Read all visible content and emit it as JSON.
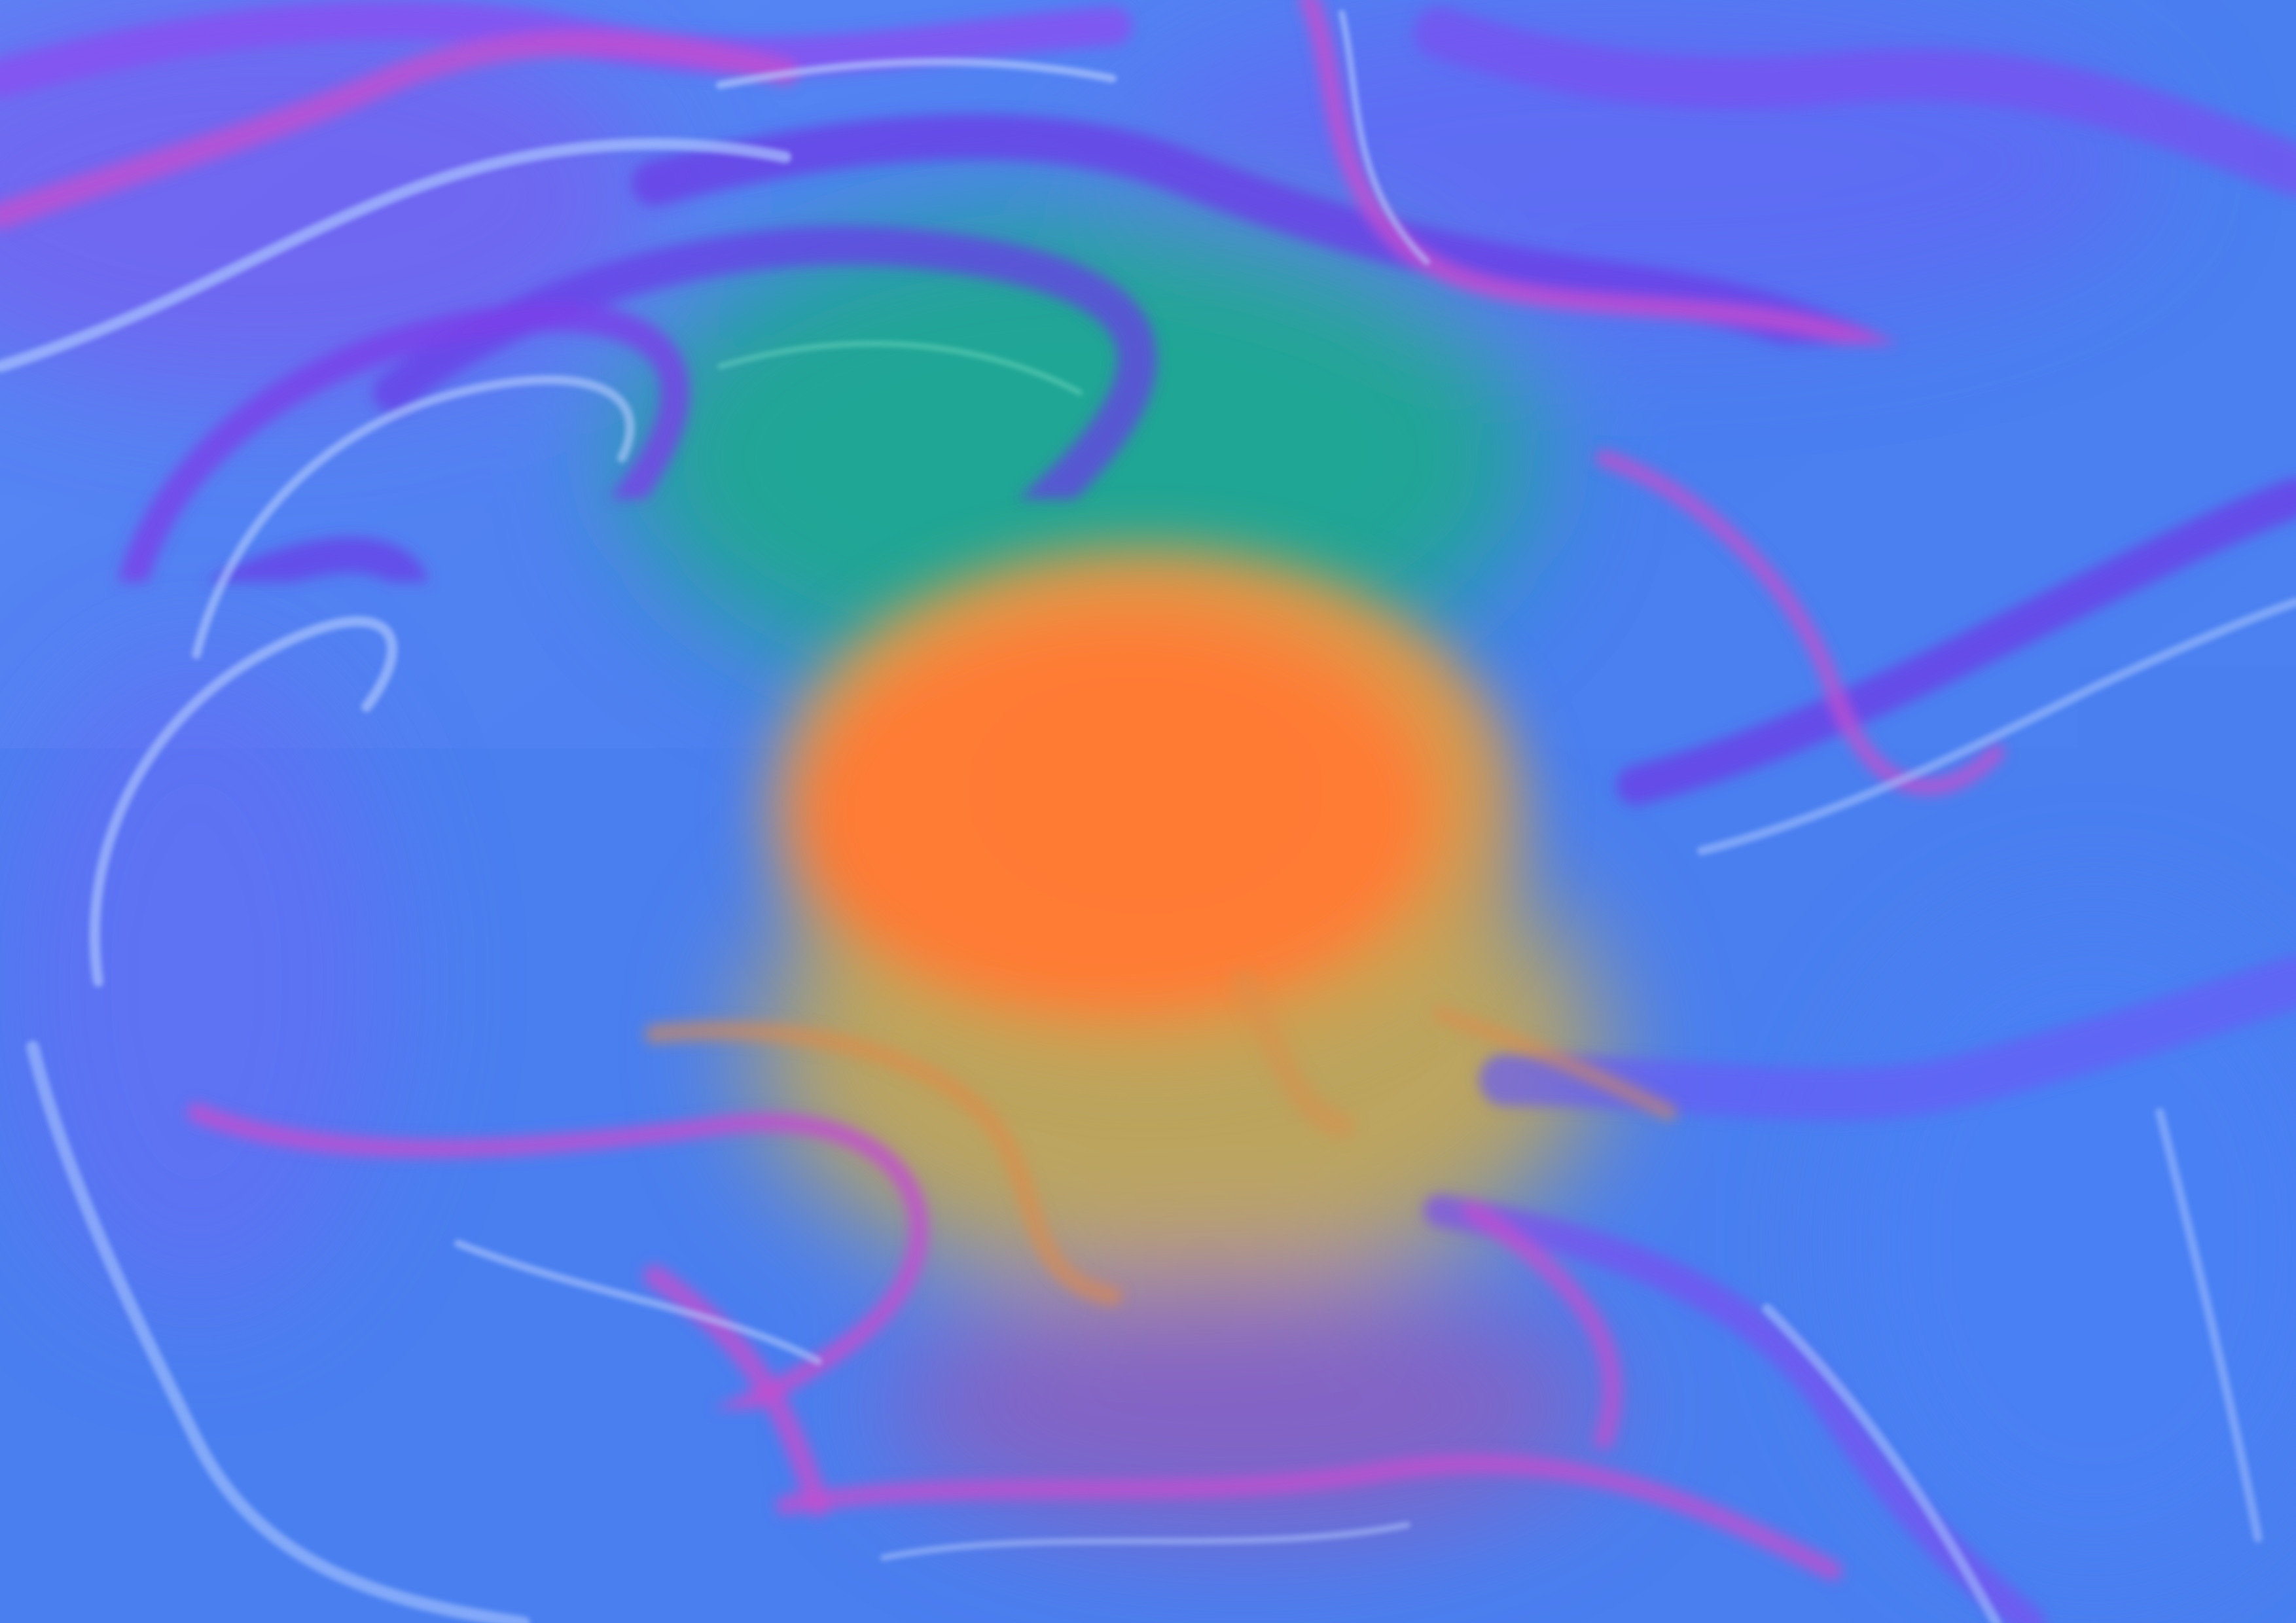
{
  "artwork": {
    "description_colors": {
      "background_blue": "#4a7ff0",
      "light_blue": "#7aa6ff",
      "violet": "#6a5cf0",
      "purple": "#7b3fe0",
      "magenta": "#c94fd8",
      "teal": "#1fa88f",
      "orange": "#ff7f38",
      "mustard": "#c9a850",
      "mauve": "#8a5fc0"
    }
  }
}
